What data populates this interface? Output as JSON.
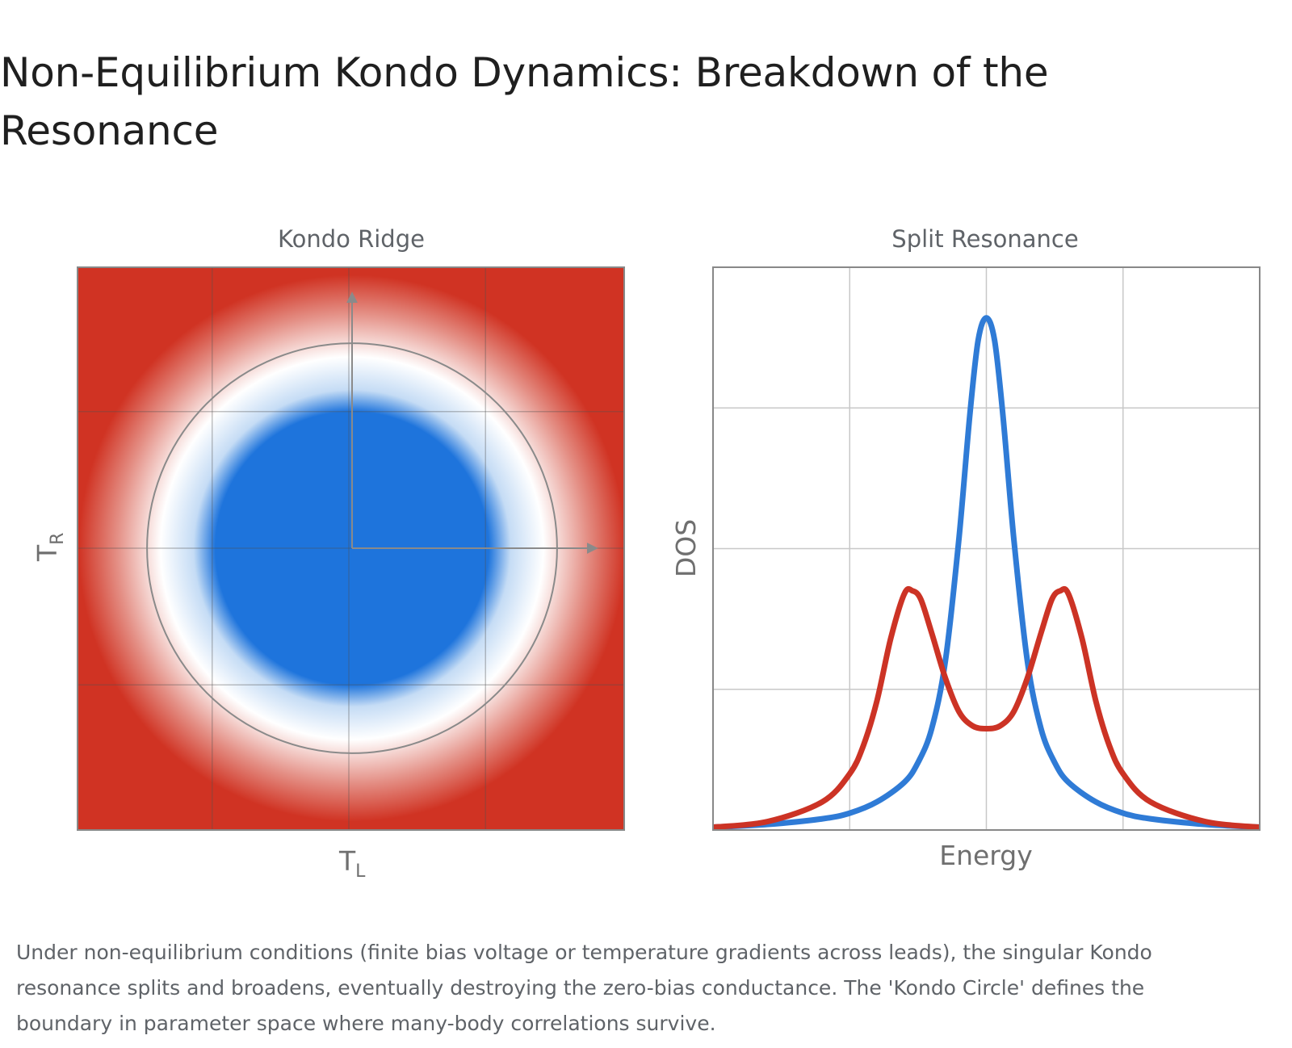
{
  "page": {
    "title": "Non-Equilibrium Kondo Dynamics: Breakdown of the Resonance",
    "caption": "Under non-equilibrium conditions (finite bias voltage or temperature gradients across leads), the singular Kondo resonance splits and broadens, eventually destroying the zero-bias conductance. The 'Kondo Circle' defines the boundary in parameter space where many-body correlations survive."
  },
  "colors": {
    "kondo_core": "#1e74dc",
    "breakdown": "#d03323",
    "blue_curve": "#2f7bd6",
    "red_curve": "#cc3325",
    "grid": "#c8c8c8",
    "frame": "#888888",
    "circle": "#8a8a8a"
  },
  "chart_data": [
    {
      "type": "heatmap",
      "title": "Kondo Ridge",
      "xlabel": "T",
      "xlabel_subscript": "L",
      "ylabel": "T",
      "ylabel_subscript": "R",
      "grid": true,
      "xlim": [
        -1,
        1
      ],
      "ylim": [
        -1,
        1
      ],
      "core_radius": 0.5,
      "fade_outer_radius": 1.0,
      "boundary_circle_radius": 0.75,
      "axes_arrows": true
    },
    {
      "type": "line",
      "title": "Split Resonance",
      "xlabel": "Energy",
      "ylabel": "DOS",
      "grid": true,
      "xlim": [
        -1,
        1
      ],
      "ylim": [
        0,
        1
      ],
      "series": [
        {
          "color_key": "blue_curve",
          "x": [
            -1.0,
            -0.8,
            -0.6,
            -0.5,
            -0.4,
            -0.3,
            -0.25,
            -0.2,
            -0.15,
            -0.1,
            -0.06,
            -0.03,
            0.0,
            0.03,
            0.06,
            0.1,
            0.15,
            0.2,
            0.25,
            0.3,
            0.4,
            0.5,
            0.6,
            0.8,
            1.0
          ],
          "y": [
            0.005,
            0.01,
            0.02,
            0.03,
            0.05,
            0.085,
            0.12,
            0.18,
            0.3,
            0.52,
            0.74,
            0.87,
            0.91,
            0.87,
            0.74,
            0.52,
            0.3,
            0.18,
            0.12,
            0.085,
            0.05,
            0.03,
            0.02,
            0.01,
            0.005
          ]
        },
        {
          "color_key": "red_curve",
          "x": [
            -1.0,
            -0.8,
            -0.6,
            -0.5,
            -0.45,
            -0.4,
            -0.35,
            -0.3,
            -0.27,
            -0.24,
            -0.2,
            -0.15,
            -0.1,
            -0.05,
            0.0,
            0.05,
            0.1,
            0.15,
            0.2,
            0.24,
            0.27,
            0.3,
            0.35,
            0.4,
            0.45,
            0.5,
            0.6,
            0.8,
            1.0
          ],
          "y": [
            0.005,
            0.015,
            0.05,
            0.1,
            0.15,
            0.23,
            0.34,
            0.42,
            0.425,
            0.41,
            0.35,
            0.27,
            0.21,
            0.185,
            0.18,
            0.185,
            0.21,
            0.27,
            0.35,
            0.41,
            0.425,
            0.42,
            0.34,
            0.23,
            0.15,
            0.1,
            0.05,
            0.015,
            0.005
          ]
        }
      ]
    }
  ]
}
